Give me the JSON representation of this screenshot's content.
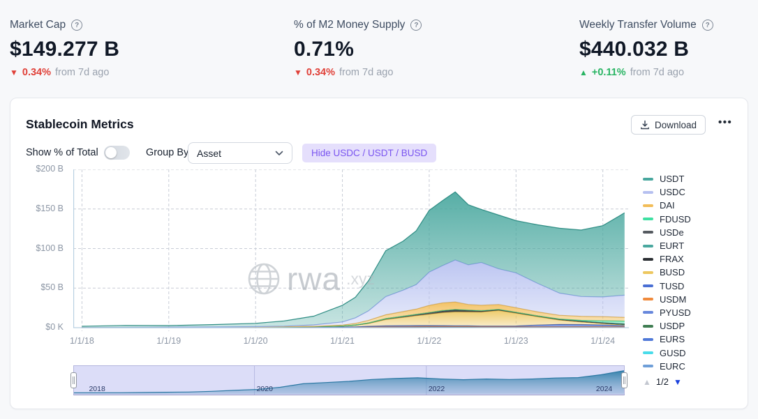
{
  "stats": [
    {
      "title": "Market Cap",
      "value": "$149.277 B",
      "delta": "0.34%",
      "dir": "down",
      "dir_icon": "▼",
      "suffix": "from 7d ago"
    },
    {
      "title": "% of M2 Money Supply",
      "value": "0.71%",
      "delta": "0.34%",
      "dir": "down",
      "dir_icon": "▼",
      "suffix": "from 7d ago"
    },
    {
      "title": "Weekly Transfer Volume",
      "value": "$440.032 B",
      "delta": "+0.11%",
      "dir": "up",
      "dir_icon": "▲",
      "suffix": "from 7d ago"
    }
  ],
  "card": {
    "title": "Stablecoin Metrics",
    "download_label": "Download",
    "more_label": "•••",
    "show_total_label": "Show % of Total",
    "group_by_label": "Group By",
    "group_by_value": "Asset",
    "hide_chip_label": "Hide USDC / USDT / BUSD"
  },
  "pagination": {
    "up_icon": "▲",
    "label": "1/2",
    "down_icon": "▼"
  },
  "watermark": {
    "text_main": "rwa",
    "text_suffix": ".xyz"
  },
  "chart_data": {
    "type": "area",
    "stacked": true,
    "title": "Stablecoin Metrics",
    "xlabel": "",
    "ylabel": "",
    "ylim": [
      0,
      200
    ],
    "xlim": [
      2017.9,
      2024.3
    ],
    "grid": true,
    "legend_position": "right",
    "y_ticks": [
      {
        "label": "$200 B",
        "v": 200
      },
      {
        "label": "$150 B",
        "v": 150
      },
      {
        "label": "$100 B",
        "v": 100
      },
      {
        "label": "$50 B",
        "v": 50
      },
      {
        "label": "$0 K",
        "v": 0
      }
    ],
    "x_ticks": [
      {
        "label": "1/1/18",
        "t": 2018
      },
      {
        "label": "1/1/19",
        "t": 2019
      },
      {
        "label": "1/1/20",
        "t": 2020
      },
      {
        "label": "1/1/21",
        "t": 2021
      },
      {
        "label": "1/1/22",
        "t": 2022
      },
      {
        "label": "1/1/23",
        "t": 2023
      },
      {
        "label": "1/1/24",
        "t": 2024
      }
    ],
    "x": [
      2018.0,
      2018.5,
      2019.0,
      2019.5,
      2020.0,
      2020.33,
      2020.67,
      2021.0,
      2021.15,
      2021.3,
      2021.5,
      2021.7,
      2021.85,
      2022.0,
      2022.15,
      2022.3,
      2022.45,
      2022.6,
      2022.8,
      2023.0,
      2023.25,
      2023.5,
      2023.75,
      2024.0,
      2024.25
    ],
    "units": "$B, stacked bottom-to-top; legend shows reverse order",
    "series": [
      {
        "name": "EURC",
        "color": "#6f9fd8",
        "stroke": "#5584c0",
        "values": [
          0,
          0,
          0,
          0,
          0,
          0,
          0,
          0,
          0,
          0,
          0,
          0,
          0,
          0.05,
          0.08,
          0.1,
          0.1,
          0.1,
          0.1,
          0.1,
          0.1,
          0.1,
          0.1,
          0.15,
          0.2
        ]
      },
      {
        "name": "GUSD",
        "color": "#49dcea",
        "stroke": "#2fc2d2",
        "values": [
          0.05,
          0.08,
          0.08,
          0.06,
          0.05,
          0.05,
          0.05,
          0.1,
          0.15,
          0.2,
          0.2,
          0.25,
          0.3,
          0.3,
          0.3,
          0.3,
          0.25,
          0.2,
          0.2,
          0.2,
          0.15,
          0.1,
          0.1,
          0.1,
          0.1
        ]
      },
      {
        "name": "EURS",
        "color": "#5079d8",
        "stroke": "#3a61bf",
        "values": [
          0,
          0,
          0,
          0.02,
          0.03,
          0.03,
          0.05,
          0.1,
          0.1,
          0.1,
          0.12,
          0.12,
          0.12,
          0.12,
          0.12,
          0.12,
          0.12,
          0.1,
          0.1,
          0.1,
          0.1,
          0.1,
          0.1,
          0.1,
          0.1
        ]
      },
      {
        "name": "USDP",
        "color": "#3f7d52",
        "stroke": "#2f6340",
        "values": [
          0,
          0,
          0.1,
          0.1,
          0.15,
          0.2,
          0.25,
          0.3,
          0.35,
          0.5,
          0.7,
          0.8,
          0.9,
          0.95,
          0.95,
          0.9,
          0.9,
          0.85,
          0.8,
          0.75,
          0.7,
          0.6,
          0.5,
          0.45,
          0.4
        ]
      },
      {
        "name": "PYUSD",
        "color": "#6787dc",
        "stroke": "#4e6fc6",
        "values": [
          0,
          0,
          0,
          0,
          0,
          0,
          0,
          0,
          0,
          0,
          0,
          0,
          0,
          0,
          0,
          0,
          0,
          0,
          0,
          0,
          0.1,
          0.2,
          0.3,
          0.3,
          0.3
        ]
      },
      {
        "name": "USDM",
        "color": "#f08a3c",
        "stroke": "#d8742a",
        "values": [
          0,
          0,
          0,
          0,
          0,
          0,
          0,
          0,
          0,
          0,
          0,
          0,
          0,
          0,
          0,
          0,
          0,
          0,
          0,
          0,
          0,
          0.05,
          0.1,
          0.15,
          0.15
        ]
      },
      {
        "name": "TUSD",
        "color": "#4a6fd4",
        "stroke": "#3757b8",
        "values": [
          0.1,
          0.15,
          0.2,
          0.25,
          0.3,
          0.3,
          0.3,
          0.35,
          0.5,
          1.0,
          1.3,
          1.4,
          1.3,
          1.2,
          1.1,
          1.0,
          0.9,
          0.8,
          0.8,
          1.0,
          2.2,
          3.0,
          2.8,
          2.2,
          1.2
        ]
      },
      {
        "name": "BUSD",
        "color": "#edc75f",
        "stroke": "#d4ad41",
        "values": [
          0,
          0,
          0,
          0,
          0.2,
          0.4,
          0.7,
          1.0,
          1.9,
          3.5,
          8,
          10.5,
          12.5,
          14.5,
          16.5,
          17.7,
          17.6,
          17.8,
          19.8,
          16.3,
          10.5,
          5.5,
          3.2,
          1.8,
          1.0
        ]
      },
      {
        "name": "FRAX",
        "color": "#2b2f33",
        "stroke": "#17191c",
        "values": [
          0,
          0,
          0,
          0,
          0,
          0,
          0,
          0.15,
          0.3,
          0.6,
          1.0,
          1.3,
          1.6,
          1.9,
          2.4,
          2.8,
          2.3,
          1.6,
          1.3,
          1.0,
          1.0,
          0.85,
          0.7,
          0.65,
          0.65
        ]
      },
      {
        "name": "EURT",
        "color": "#4aa89f",
        "stroke": "#37948b",
        "values": [
          0,
          0,
          0,
          0,
          0,
          0.05,
          0.05,
          0.05,
          0.1,
          0.1,
          0.15,
          0.2,
          0.2,
          0.2,
          0.2,
          0.2,
          0.2,
          0.15,
          0.12,
          0.1,
          0.1,
          0.08,
          0.08,
          0.08,
          0.08
        ]
      },
      {
        "name": "USDe",
        "color": "#555a60",
        "stroke": "#3a3f45",
        "values": [
          0,
          0,
          0,
          0,
          0,
          0,
          0,
          0,
          0,
          0,
          0,
          0,
          0,
          0,
          0,
          0,
          0,
          0,
          0,
          0,
          0,
          0,
          0,
          0.2,
          0.5
        ]
      },
      {
        "name": "FDUSD",
        "color": "#3fe0a2",
        "stroke": "#2bc488",
        "values": [
          0,
          0,
          0,
          0,
          0,
          0,
          0,
          0,
          0,
          0,
          0,
          0,
          0,
          0,
          0,
          0,
          0,
          0,
          0,
          0,
          0,
          0.4,
          1.3,
          2.5,
          3.6
        ]
      },
      {
        "name": "DAI",
        "color": "#f2bd58",
        "stroke": "#dca83e",
        "values": [
          0,
          0,
          0.05,
          0.08,
          0.12,
          0.15,
          0.3,
          1.2,
          2.0,
          3.2,
          4.8,
          5.8,
          6.5,
          9.0,
          9.6,
          9.4,
          7.0,
          6.8,
          6.1,
          5.7,
          5.0,
          4.7,
          5.1,
          5.2,
          4.8
        ]
      },
      {
        "name": "USDC",
        "color": "#b6c0f0",
        "stroke": "#93a2e8",
        "values": [
          0,
          0.1,
          0.25,
          0.35,
          0.5,
          0.8,
          1.8,
          4,
          7,
          12,
          23,
          27,
          31,
          42,
          47,
          53,
          50,
          54,
          45,
          44,
          36,
          28,
          25,
          25,
          28
        ]
      },
      {
        "name": "USDT",
        "color": "#48a79e",
        "stroke": "#2f8d84",
        "values": [
          1.6,
          2.5,
          2.0,
          3.0,
          4.1,
          6.5,
          11,
          21,
          26,
          38,
          58,
          62,
          68,
          78,
          82,
          86,
          76,
          67,
          68,
          66,
          74,
          82,
          84,
          90,
          104
        ]
      }
    ]
  },
  "minimap": {
    "labels": [
      {
        "label": "2018",
        "t": 2018.05
      },
      {
        "label": "2020",
        "t": 2020
      },
      {
        "label": "2022",
        "t": 2022
      },
      {
        "label": "2024",
        "t": 2023.95
      }
    ],
    "gridline_years": [
      2020,
      2022
    ],
    "values": [
      0.02,
      0.02,
      0.02,
      0.03,
      0.04,
      0.05,
      0.08,
      0.12,
      0.16,
      0.25,
      0.4,
      0.45,
      0.5,
      0.58,
      0.62,
      0.65,
      0.6,
      0.57,
      0.6,
      0.58,
      0.6,
      0.64,
      0.66,
      0.78,
      0.95
    ]
  }
}
